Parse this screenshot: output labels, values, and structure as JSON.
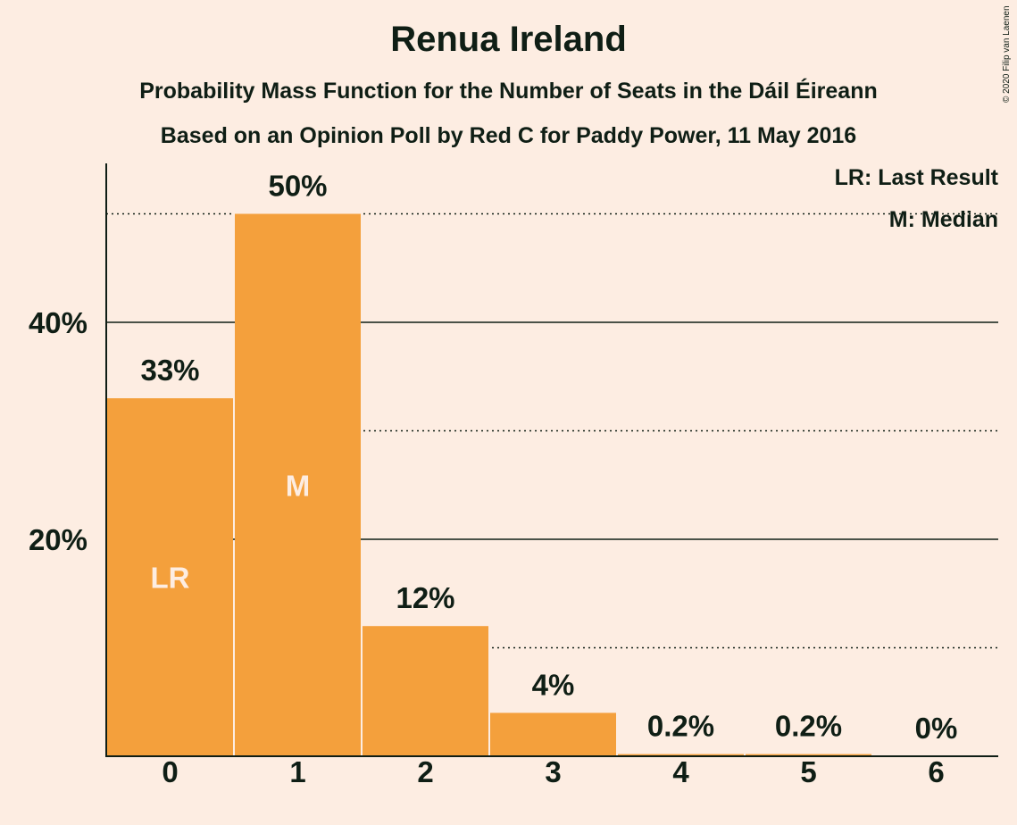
{
  "chart_data": {
    "type": "bar",
    "title": "Renua Ireland",
    "subtitle": "Probability Mass Function for the Number of Seats in the Dáil Éireann",
    "subtitle2": "Based on an Opinion Poll by Red C for Paddy Power, 11 May 2016",
    "categories": [
      "0",
      "1",
      "2",
      "3",
      "4",
      "5",
      "6"
    ],
    "values": [
      33,
      50,
      12,
      4,
      0.2,
      0.2,
      0
    ],
    "value_labels": [
      "33%",
      "50%",
      "12%",
      "4%",
      "0.2%",
      "0.2%",
      "0%"
    ],
    "ylim": [
      0,
      54.5
    ],
    "y_ticks": [
      {
        "value": 20,
        "label": "20%"
      },
      {
        "value": 40,
        "label": "40%"
      }
    ],
    "grid_solid": [
      20,
      40
    ],
    "grid_dotted": [
      10,
      30,
      50
    ],
    "bar_annotations": [
      {
        "index": 0,
        "text": "LR"
      },
      {
        "index": 1,
        "text": "M"
      }
    ],
    "legend": [
      "LR: Last Result",
      "M: Median"
    ],
    "legend_position": "top-right",
    "bar_color": "#F4A03C",
    "text_color": "#0F1E15",
    "background": "#FDEDE2"
  },
  "copyright": "© 2020 Filip van Laenen"
}
